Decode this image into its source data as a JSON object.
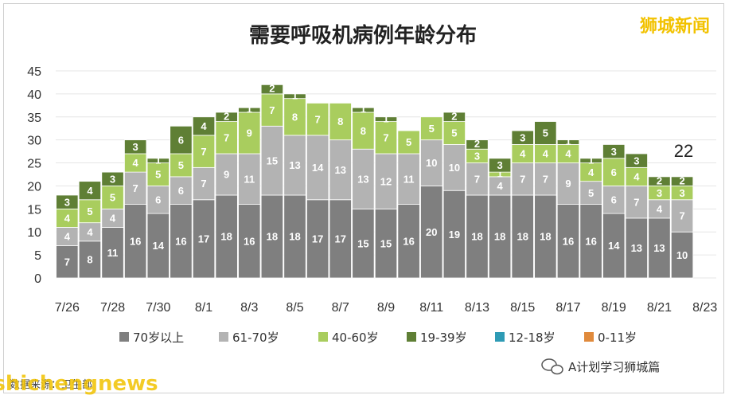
{
  "title": "需要呼吸机病例年龄分布",
  "watermark_top": "狮城新闻",
  "footer": {
    "left": "数据来源：卫生部",
    "brand": "shichengnews",
    "right": "A计划学习狮城篇"
  },
  "annotation": "22",
  "chart_data": {
    "type": "bar",
    "stacked": true,
    "title": "需要呼吸机病例年龄分布",
    "ylim": [
      0,
      45
    ],
    "yticks": [
      0,
      5,
      10,
      15,
      20,
      25,
      30,
      35,
      40,
      45
    ],
    "x_tick_labels": [
      "7/26",
      "7/28",
      "7/30",
      "8/1",
      "8/3",
      "8/5",
      "8/7",
      "8/9",
      "8/11",
      "8/13",
      "8/15",
      "8/17",
      "8/19",
      "8/21",
      "8/23"
    ],
    "categories": [
      "7/26",
      "7/27",
      "7/28",
      "7/29",
      "7/30",
      "7/31",
      "8/1",
      "8/2",
      "8/3",
      "8/4",
      "8/5",
      "8/6",
      "8/7",
      "8/8",
      "8/9",
      "8/10",
      "8/11",
      "8/12",
      "8/13",
      "8/14",
      "8/15",
      "8/16",
      "8/17",
      "8/18",
      "8/19",
      "8/20",
      "8/21",
      "8/22",
      "8/23"
    ],
    "legend_position": "bottom",
    "series": [
      {
        "name": "70岁以上",
        "color": "#7f7f7f",
        "values": [
          7,
          8,
          11,
          16,
          14,
          16,
          17,
          18,
          16,
          18,
          18,
          17,
          17,
          15,
          15,
          16,
          20,
          19,
          18,
          18,
          18,
          18,
          16,
          16,
          14,
          13,
          13,
          10,
          0
        ]
      },
      {
        "name": "61-70岁",
        "color": "#b3b3b3",
        "values": [
          4,
          4,
          4,
          7,
          6,
          6,
          7,
          9,
          11,
          15,
          13,
          14,
          13,
          13,
          12,
          11,
          10,
          10,
          7,
          4,
          7,
          7,
          9,
          5,
          6,
          7,
          4,
          7,
          0
        ]
      },
      {
        "name": "40-60岁",
        "color": "#a9cd5e",
        "values": [
          4,
          5,
          5,
          4,
          5,
          5,
          7,
          7,
          9,
          7,
          8,
          7,
          8,
          8,
          7,
          5,
          5,
          5,
          3,
          1,
          4,
          4,
          4,
          4,
          6,
          4,
          3,
          3,
          0
        ]
      },
      {
        "name": "19-39岁",
        "color": "#5f7f35",
        "values": [
          3,
          4,
          3,
          3,
          1,
          6,
          4,
          2,
          1,
          2,
          1,
          0,
          0,
          1,
          1,
          0,
          0,
          2,
          2,
          3,
          3,
          5,
          1,
          1,
          3,
          3,
          2,
          2,
          0
        ]
      },
      {
        "name": "12-18岁",
        "color": "#2e9bb5",
        "values": [
          0,
          0,
          0,
          0,
          0,
          0,
          0,
          0,
          0,
          0,
          0,
          0,
          0,
          0,
          0,
          0,
          0,
          0,
          0,
          0,
          0,
          0,
          0,
          0,
          0,
          0,
          0,
          0,
          0
        ]
      },
      {
        "name": "0-11岁",
        "color": "#e08a3c",
        "values": [
          0,
          0,
          0,
          0,
          0,
          0,
          0,
          0,
          0,
          0,
          0,
          0,
          0,
          0,
          0,
          0,
          0,
          0,
          0,
          0,
          0,
          0,
          0,
          0,
          0,
          0,
          0,
          0,
          0
        ]
      }
    ]
  }
}
